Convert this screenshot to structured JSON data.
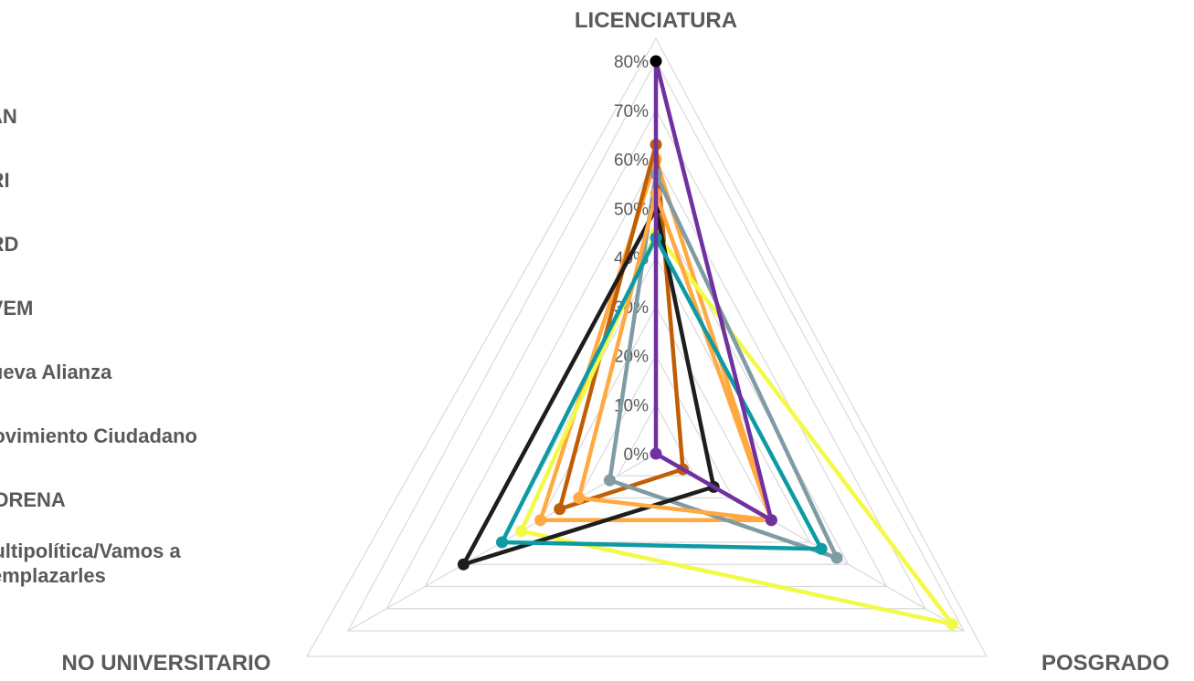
{
  "chart_data": {
    "type": "radar",
    "axes": [
      "LICENCIATURA",
      "POSGRADO",
      "NO UNIVERSITARIO"
    ],
    "ticks": [
      "0%",
      "10%",
      "20%",
      "30%",
      "40%",
      "50%",
      "60%",
      "70%",
      "80%"
    ],
    "rlim": [
      0,
      80
    ],
    "grid": true,
    "legend_position": "left",
    "series": [
      {
        "name": "PAN",
        "color": "#FFA940",
        "values": [
          60,
          30,
          30
        ],
        "marker": "#FFA940"
      },
      {
        "name": "PRI",
        "color": "#C15E05",
        "values": [
          63,
          7,
          25
        ],
        "marker": "#C15E05"
      },
      {
        "name": "PRD",
        "color": "#F3FA46",
        "values": [
          45,
          77,
          35
        ],
        "marker": "#F3FA46"
      },
      {
        "name": "PVEM",
        "color": "#7F9BA6",
        "values": [
          57,
          47,
          12
        ],
        "marker": "#7F9BA6"
      },
      {
        "name": "Nueva Alianza",
        "color": "#1D1D1D",
        "values": [
          50,
          15,
          50
        ],
        "marker": "#000000"
      },
      {
        "name": "Movimiento Ciudadano",
        "color": "#FFA940",
        "values": [
          53,
          30,
          20
        ],
        "marker": "#FFA940"
      },
      {
        "name": "MORENA",
        "color": "#0E9AA5",
        "values": [
          44,
          43,
          40
        ],
        "marker": "#0E9AA5"
      },
      {
        "name": "Multipolítica/Vamos a Remplazarles",
        "color": "#7030A0",
        "values": [
          80,
          30,
          0
        ],
        "marker": "#000000"
      }
    ]
  },
  "legend": {
    "items": [
      {
        "label": "PAN"
      },
      {
        "label": "PRI"
      },
      {
        "label": "PRD"
      },
      {
        "label": "PVEM"
      },
      {
        "label": "Nueva Alianza"
      },
      {
        "label": "Movimiento Ciudadano"
      },
      {
        "label": "MORENA"
      },
      {
        "label": "Multipolítica/Vamos a Remplazarles"
      }
    ]
  }
}
